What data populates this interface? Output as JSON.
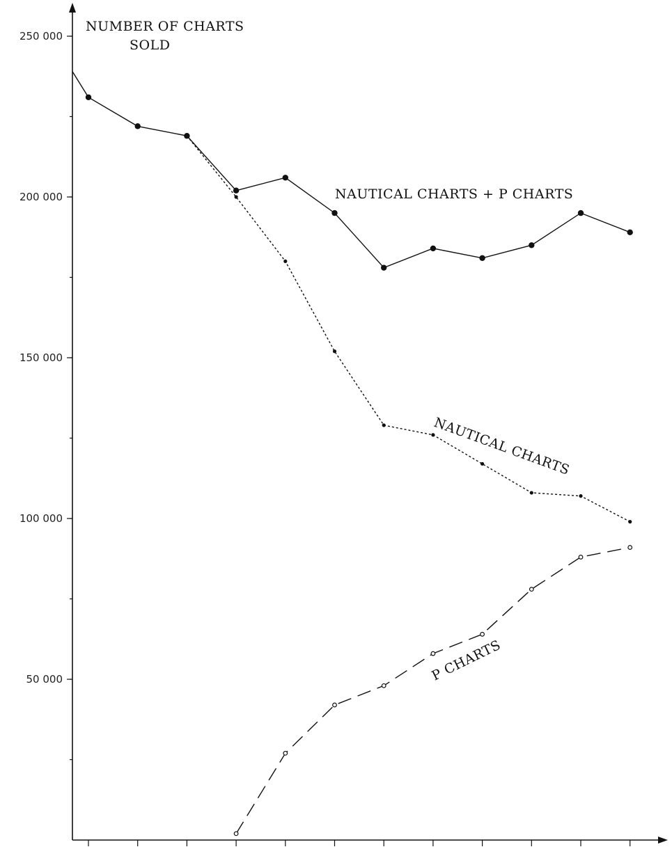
{
  "chart_data": {
    "type": "line",
    "title": "NUMBER OF CHARTS SOLD",
    "title_lines": [
      "NUMBER OF CHARTS",
      "SOLD"
    ],
    "xlabel": "",
    "ylabel": "",
    "x": [
      1,
      2,
      3,
      4,
      5,
      6,
      7,
      8,
      9,
      10,
      11,
      12
    ],
    "xlim": [
      0.7,
      13.2
    ],
    "ylim": [
      0,
      250000
    ],
    "y_ticks": [
      50000,
      100000,
      150000,
      200000,
      250000
    ],
    "y_tick_labels": [
      "50 000",
      "100 000",
      "150 000",
      "200 000",
      "250 000"
    ],
    "y_minor_step": 25000,
    "grid": false,
    "legend": "none",
    "series": [
      {
        "name": "NAUTICAL CHARTS + P CHARTS",
        "style": "solid",
        "marker": "filled-large",
        "color": "#111111",
        "start_y": 239000,
        "values": [
          231000,
          222000,
          219000,
          202000,
          206000,
          195000,
          178000,
          184000,
          181000,
          185000,
          195000,
          189000
        ]
      },
      {
        "name": "NAUTICAL CHARTS",
        "style": "dotted",
        "marker": "filled-small",
        "color": "#111111",
        "values": [
          null,
          null,
          219000,
          200000,
          180000,
          152000,
          129000,
          126000,
          117000,
          108000,
          107000,
          99000
        ]
      },
      {
        "name": "P CHARTS",
        "style": "dashed",
        "marker": "open",
        "color": "#111111",
        "values": [
          null,
          null,
          null,
          2000,
          27000,
          42000,
          48000,
          58000,
          64000,
          78000,
          88000,
          91000
        ]
      }
    ]
  }
}
